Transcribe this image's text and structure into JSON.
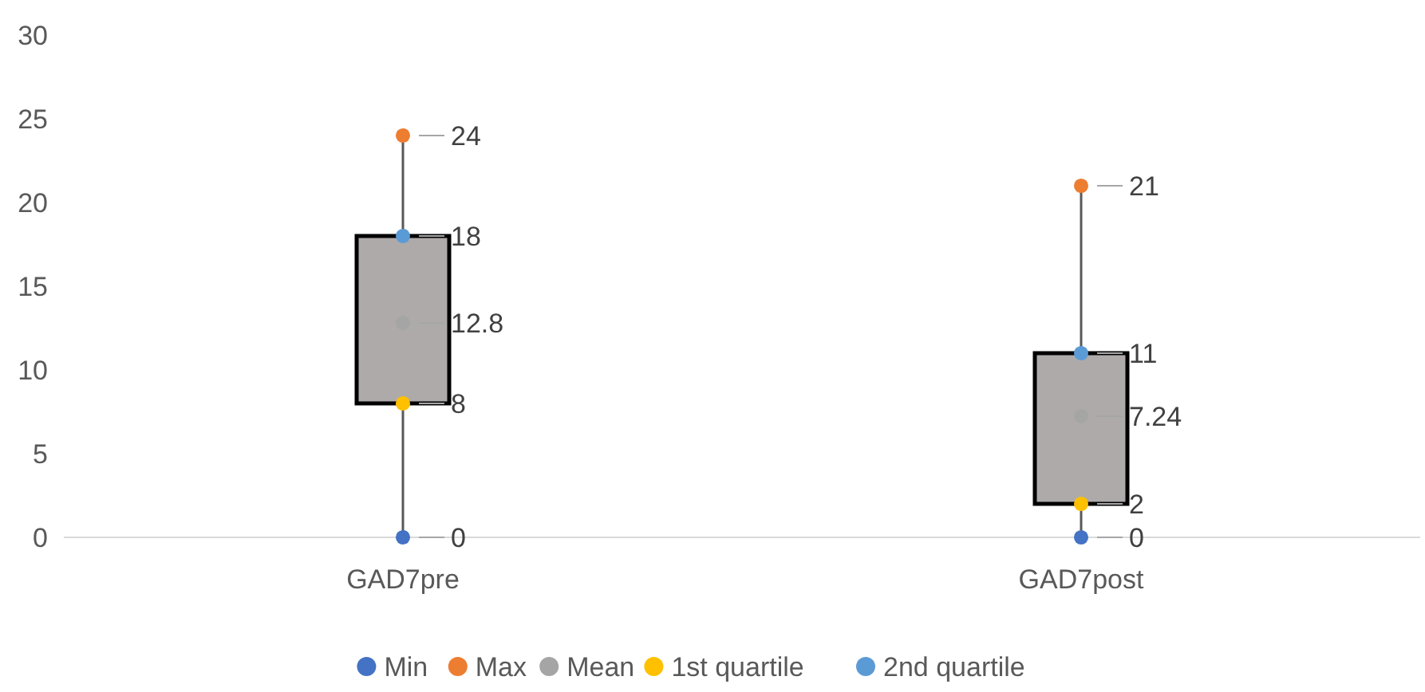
{
  "chart_data": {
    "type": "scatter",
    "categories": [
      "GAD7pre",
      "GAD7post"
    ],
    "ylim": [
      0,
      30
    ],
    "yticks": [
      0,
      5,
      10,
      15,
      20,
      25,
      30
    ],
    "legend": "bottom",
    "marker": "circle",
    "data_labels": true,
    "series": [
      {
        "type": "box",
        "color": "#aeaaaa",
        "boxes": [
          {
            "low": 0,
            "q1": 8,
            "q3": 18,
            "high": 24
          },
          {
            "low": 0,
            "q1": 2,
            "q3": 11,
            "high": 21
          }
        ]
      },
      {
        "name": "Min",
        "color": "#4472c4",
        "values": [
          0,
          0
        ]
      },
      {
        "name": "Max",
        "color": "#ed7d31",
        "values": [
          24,
          21
        ]
      },
      {
        "name": "Mean",
        "color": "#a5a5a5",
        "values": [
          12.8,
          7.24
        ]
      },
      {
        "name": "1st quartile",
        "color": "#ffc000",
        "values": [
          8,
          2
        ]
      },
      {
        "name": "2nd quartile",
        "color": "#5b9bd5",
        "values": [
          18,
          11
        ]
      }
    ]
  }
}
